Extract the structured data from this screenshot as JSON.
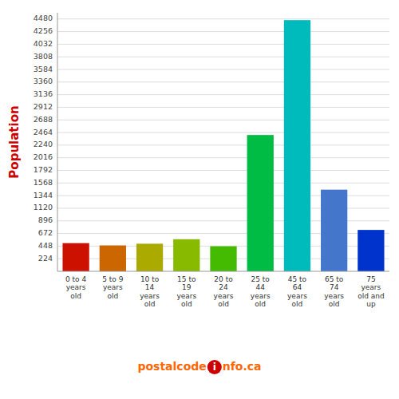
{
  "chart_data": {
    "type": "bar",
    "categories": [
      "0 to 4\nyears\nold",
      "5 to 9\nyears\nold",
      "10 to\n14\nyears\nold",
      "15 to\n19\nyears\nold",
      "20 to\n24\nyears\nold",
      "25 to\n44\nyears\nold",
      "45 to\n64\nyears\nold",
      "65 to\n74\nyears\nold",
      "75\nyears\nold and\nup"
    ],
    "values": [
      500,
      460,
      490,
      570,
      445,
      2420,
      4460,
      1450,
      735
    ],
    "colors": [
      "#cc1100",
      "#cc6600",
      "#aaaa00",
      "#88bb00",
      "#44bb00",
      "#00bb44",
      "#00bbbb",
      "#4477cc",
      "#0033cc"
    ],
    "ylabel": "Population",
    "ylabel_color": "#cc0000",
    "ylim": [
      0,
      4590
    ],
    "yticks": [
      224,
      448,
      672,
      896,
      1120,
      1344,
      1568,
      1792,
      2016,
      2240,
      2464,
      2688,
      2912,
      3136,
      3360,
      3584,
      3808,
      4032,
      4256,
      4480
    ],
    "grid": true,
    "annotations": [
      {
        "text": "postalcode",
        "color": "#ff6600"
      },
      {
        "text": "i",
        "color": "#cc0000"
      },
      {
        "text": "nfo.ca",
        "color": "#ff6600"
      }
    ]
  }
}
